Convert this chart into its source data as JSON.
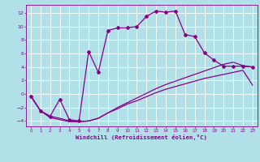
{
  "xlabel": "Windchill (Refroidissement éolien,°C)",
  "background_color": "#b2e0e8",
  "grid_color": "#ffffff",
  "line_color": "#880088",
  "xlim": [
    -0.5,
    23.5
  ],
  "ylim": [
    -4.8,
    13.2
  ],
  "xticks": [
    0,
    1,
    2,
    3,
    4,
    5,
    6,
    7,
    8,
    9,
    10,
    11,
    12,
    13,
    14,
    15,
    16,
    17,
    18,
    19,
    20,
    21,
    22,
    23
  ],
  "yticks": [
    -4,
    -2,
    0,
    2,
    4,
    6,
    8,
    10,
    12
  ],
  "line_main_x": [
    0,
    1,
    2,
    3,
    4,
    5,
    6,
    7,
    8,
    9,
    10,
    11,
    12,
    13,
    14,
    15,
    16,
    17,
    18,
    19,
    20,
    21,
    22,
    23
  ],
  "line_main_y": [
    -0.3,
    -2.5,
    -3.3,
    -0.8,
    -3.8,
    -4.0,
    6.3,
    3.2,
    9.4,
    9.8,
    9.8,
    10.0,
    11.5,
    12.3,
    12.1,
    12.3,
    8.8,
    8.5,
    6.1,
    5.0,
    4.1,
    4.1,
    4.1,
    4.0
  ],
  "line_low_x": [
    0,
    1,
    2,
    3,
    4,
    5,
    6,
    7,
    8,
    9,
    10,
    11,
    12,
    13,
    14,
    15,
    16,
    17,
    18,
    19,
    20,
    21,
    22,
    23
  ],
  "line_low_y": [
    -0.3,
    -2.5,
    -3.3,
    -3.6,
    -4.0,
    -4.1,
    -4.0,
    -3.6,
    -2.8,
    -2.2,
    -1.5,
    -1.0,
    -0.4,
    0.2,
    0.7,
    1.1,
    1.5,
    1.9,
    2.3,
    2.6,
    2.9,
    3.2,
    3.5,
    1.3
  ],
  "line_mid_x": [
    0,
    1,
    2,
    3,
    4,
    5,
    6,
    7,
    8,
    9,
    10,
    11,
    12,
    13,
    14,
    15,
    16,
    17,
    18,
    19,
    20,
    21,
    22,
    23
  ],
  "line_mid_y": [
    -0.3,
    -2.5,
    -3.5,
    -3.8,
    -4.1,
    -4.1,
    -4.0,
    -3.6,
    -2.8,
    -2.0,
    -1.3,
    -0.6,
    0.1,
    0.8,
    1.4,
    1.9,
    2.4,
    2.9,
    3.4,
    3.9,
    4.4,
    4.7,
    4.2,
    4.0
  ]
}
